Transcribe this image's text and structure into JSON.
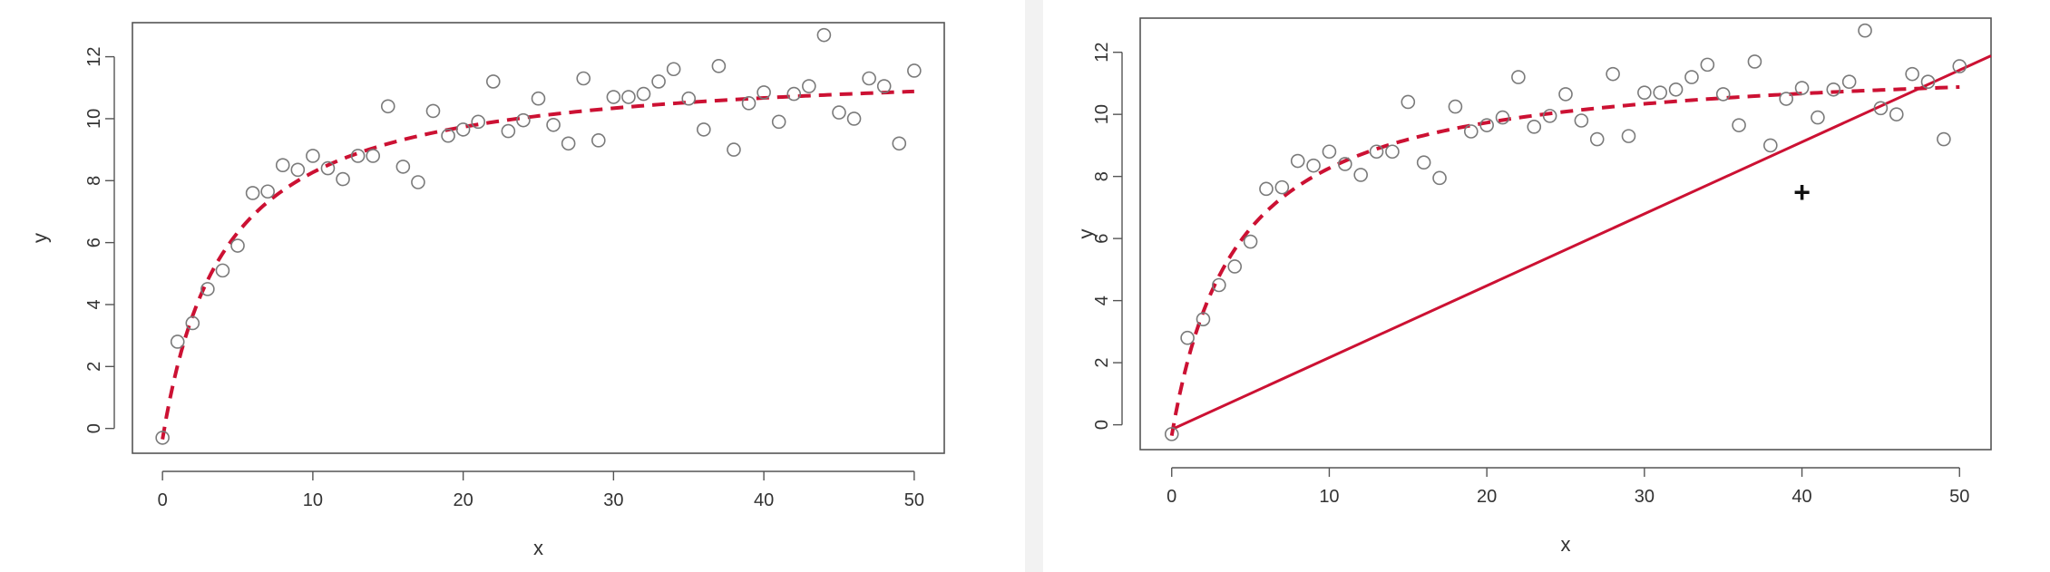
{
  "chart_data": [
    {
      "type": "scatter",
      "xlabel": "x",
      "ylabel": "y",
      "xlim": [
        -2,
        52
      ],
      "ylim": [
        -0.8,
        13.1
      ],
      "xticks": [
        0,
        10,
        20,
        30,
        40,
        50
      ],
      "yticks": [
        0,
        2,
        4,
        6,
        8,
        10,
        12
      ],
      "grid": false,
      "legend": "none",
      "points": {
        "x": [
          0,
          1,
          2,
          3,
          4,
          5,
          6,
          7,
          8,
          9,
          10,
          11,
          12,
          13,
          14,
          15,
          16,
          17,
          18,
          19,
          20,
          21,
          22,
          23,
          24,
          25,
          26,
          27,
          28,
          29,
          30,
          31,
          32,
          33,
          34,
          35,
          36,
          37,
          38,
          39,
          40,
          41,
          42,
          43,
          44,
          45,
          46,
          47,
          48,
          49,
          50
        ],
        "y": [
          -0.3,
          2.8,
          3.4,
          4.5,
          5.1,
          5.9,
          7.6,
          7.65,
          8.5,
          8.35,
          8.8,
          8.4,
          8.05,
          8.8,
          8.8,
          10.4,
          8.45,
          7.95,
          10.25,
          9.45,
          9.65,
          9.9,
          11.2,
          9.6,
          9.95,
          10.65,
          9.8,
          9.2,
          11.3,
          9.3,
          10.7,
          10.7,
          10.8,
          11.2,
          11.6,
          10.65,
          9.65,
          11.7,
          9.0,
          10.5,
          10.85,
          9.9,
          10.8,
          11.05,
          12.7,
          10.2,
          10.0,
          11.3,
          11.05,
          9.2,
          11.55
        ],
        "marker": "open-circle",
        "color": "#7a7a7a"
      },
      "curves": [
        {
          "style": "dashed",
          "color": "#cc1133",
          "model": "saturating",
          "params": {
            "a": 11.8,
            "b": 4.1,
            "y0": -0.35
          },
          "x_range": [
            0,
            50
          ]
        }
      ]
    },
    {
      "type": "scatter",
      "xlabel": "x",
      "ylabel": "y",
      "xlim": [
        -2,
        52
      ],
      "ylim": [
        -0.8,
        13.1
      ],
      "xticks": [
        0,
        10,
        20,
        30,
        40,
        50
      ],
      "yticks": [
        0,
        2,
        4,
        6,
        8,
        10,
        12
      ],
      "grid": false,
      "legend": "none",
      "points": {
        "x": [
          0,
          1,
          2,
          3,
          4,
          5,
          6,
          7,
          8,
          9,
          10,
          11,
          12,
          13,
          14,
          15,
          16,
          17,
          18,
          19,
          20,
          21,
          22,
          23,
          24,
          25,
          26,
          27,
          28,
          29,
          30,
          31,
          32,
          33,
          34,
          35,
          36,
          37,
          38,
          39,
          40,
          41,
          42,
          43,
          44,
          45,
          46,
          47,
          48,
          49,
          50
        ],
        "y": [
          -0.3,
          2.8,
          3.4,
          4.5,
          5.1,
          5.9,
          7.6,
          7.65,
          8.5,
          8.35,
          8.8,
          8.4,
          8.05,
          8.8,
          8.8,
          10.4,
          8.45,
          7.95,
          10.25,
          9.45,
          9.65,
          9.9,
          11.2,
          9.6,
          9.95,
          10.65,
          9.8,
          9.2,
          11.3,
          9.3,
          10.7,
          10.7,
          10.8,
          11.2,
          11.6,
          10.65,
          9.65,
          11.7,
          9.0,
          10.5,
          10.85,
          9.9,
          10.8,
          11.05,
          12.7,
          10.2,
          10.0,
          11.3,
          11.05,
          9.2,
          11.55
        ],
        "marker": "open-circle",
        "color": "#7a7a7a"
      },
      "curves": [
        {
          "style": "dashed",
          "color": "#cc1133",
          "model": "saturating",
          "params": {
            "a": 11.8,
            "b": 4.1,
            "y0": -0.35
          },
          "x_range": [
            0,
            50
          ]
        },
        {
          "style": "solid",
          "color": "#cc1133",
          "model": "line",
          "params": {
            "slope": 0.2315,
            "intercept": -0.15
          },
          "x_range": [
            0,
            52
          ]
        }
      ],
      "annotations": [
        {
          "symbol": "+",
          "x": 40,
          "y": 7.5
        }
      ]
    }
  ],
  "icons": {
    "cursor": "crosshair-cursor-icon"
  }
}
